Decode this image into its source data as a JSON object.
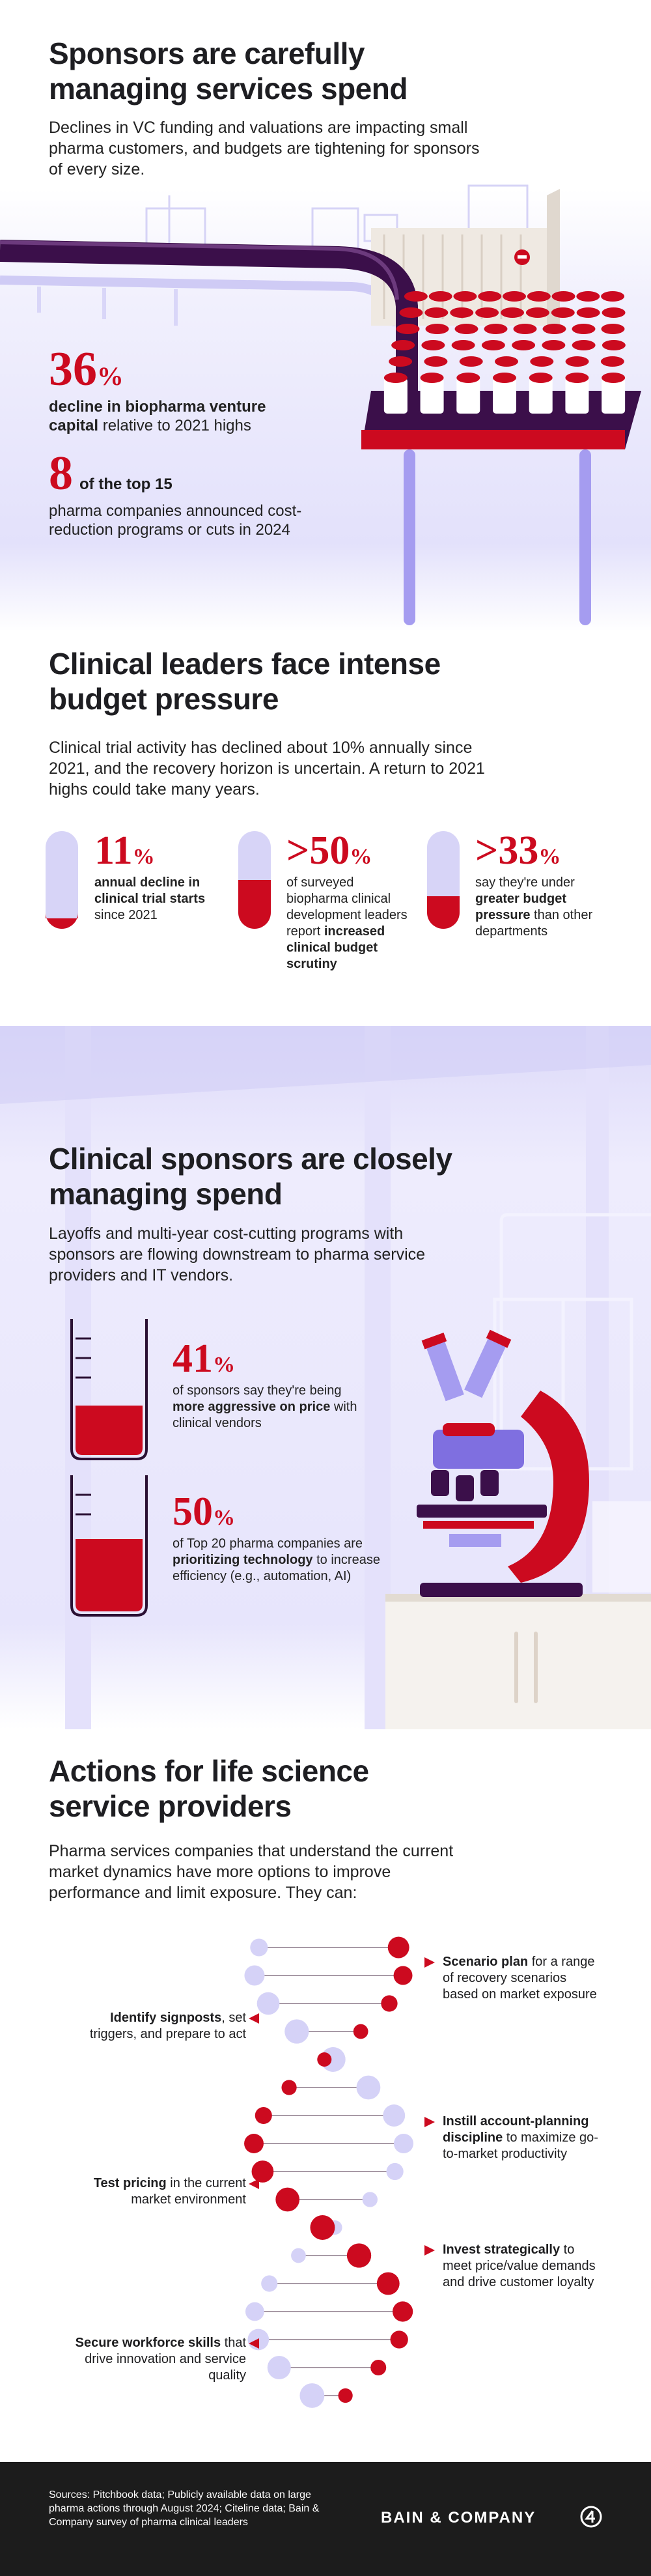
{
  "section1": {
    "title": "Sponsors are carefully managing services spend",
    "text": "Declines in VC funding and valuations are impacting small pharma customers, and budgets are tightening for sponsors of every size.",
    "stats": [
      {
        "figure": "36",
        "suffix": "%",
        "parts": [
          {
            "text": "decline in biopharma venture capital",
            "bold": true
          },
          {
            "text": " relative to 2021 highs",
            "bold": false
          }
        ]
      },
      {
        "figure": "8",
        "lead": "of the top 15",
        "parts": [
          {
            "text": "pharma companies announced cost-reduction programs or cuts in 2024",
            "bold": false
          }
        ]
      }
    ]
  },
  "section2": {
    "title": "Clinical leaders face intense budget pressure",
    "text": "Clinical trial activity has declined about 10% annually since 2021, and the recovery horizon is uncertain. A return to 2021 highs could take many years.",
    "stats": [
      {
        "figure": "11",
        "suffix": "%",
        "parts": [
          {
            "text": "annual decline in clinical trial starts",
            "bold": true
          },
          {
            "text": " since 2021",
            "bold": false
          }
        ]
      },
      {
        "figure": ">50",
        "suffix": "%",
        "parts": [
          {
            "text": "of surveyed biopharma clinical development leaders report ",
            "bold": false
          },
          {
            "text": "increased clinical budget scrutiny",
            "bold": true
          }
        ]
      },
      {
        "figure": ">33",
        "suffix": "%",
        "parts": [
          {
            "text": "say they're under ",
            "bold": false
          },
          {
            "text": "greater budget pressure",
            "bold": true
          },
          {
            "text": " than other departments",
            "bold": false
          }
        ]
      }
    ]
  },
  "section3": {
    "title": "Clinical sponsors are closely managing spend",
    "text": "Layoffs and multi-year cost-cutting programs with sponsors are flowing downstream to pharma service providers and IT vendors.",
    "stats": [
      {
        "figure": "41",
        "suffix": "%",
        "parts": [
          {
            "text": "of sponsors say they're being ",
            "bold": false
          },
          {
            "text": "more aggressive on price",
            "bold": true
          },
          {
            "text": " with clinical vendors",
            "bold": false
          }
        ]
      },
      {
        "figure": "50",
        "suffix": "%",
        "parts": [
          {
            "text": "of Top 20 pharma companies are ",
            "bold": false
          },
          {
            "text": "prioritizing technology",
            "bold": true
          },
          {
            "text": " to increase efficiency (e.g., automation, AI)",
            "bold": false
          }
        ]
      }
    ]
  },
  "section4": {
    "title": "Actions for life science service providers",
    "text": "Pharma services companies that understand the current market dynamics have more options to improve performance and limit exposure. They can:",
    "actions": [
      {
        "side": "right",
        "parts": [
          {
            "text": "Scenario plan",
            "bold": true
          },
          {
            "text": " for a range of recovery scenarios based on market exposure",
            "bold": false
          }
        ]
      },
      {
        "side": "left",
        "parts": [
          {
            "text": "Identify signposts",
            "bold": true
          },
          {
            "text": ", set triggers, and prepare to act",
            "bold": false
          }
        ]
      },
      {
        "side": "right",
        "parts": [
          {
            "text": "Instill account-planning discipline",
            "bold": true
          },
          {
            "text": " to maximize go-to-market productivity",
            "bold": false
          }
        ]
      },
      {
        "side": "left",
        "parts": [
          {
            "text": "Test pricing",
            "bold": true
          },
          {
            "text": " in the current market environment",
            "bold": false
          }
        ]
      },
      {
        "side": "right",
        "parts": [
          {
            "text": "Invest strategically",
            "bold": true
          },
          {
            "text": " to meet price/value demands and drive customer loyalty",
            "bold": false
          }
        ]
      },
      {
        "side": "left",
        "parts": [
          {
            "text": "Secure workforce skills",
            "bold": true
          },
          {
            "text": " that drive innovation and service quality",
            "bold": false
          }
        ]
      }
    ]
  },
  "footer": {
    "sources": "Sources: Pitchbook data; Publicly available data on large pharma actions through August 2024; Citeline data; Bain & Company survey of pharma clinical leaders",
    "logo": "BAIN & COMPANY"
  }
}
